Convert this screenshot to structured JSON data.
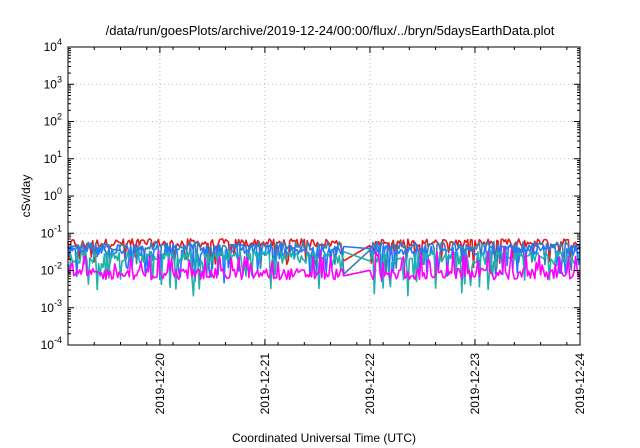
{
  "chart_data": {
    "type": "line",
    "title": "/data/run/goesPlots/archive/2019-12-24/00:00/flux/../bryn/5daysEarthData.plot",
    "xlabel": "Coordinated Universal Time (UTC)",
    "ylabel": "cSv/day",
    "yscale": "log",
    "ylim": [
      0.0001,
      10000
    ],
    "xlim": [
      "2019-12-19T03:00",
      "2019-12-24T00:00"
    ],
    "y_ticks": [
      {
        "value": 0.0001,
        "base": "10",
        "exp": "-4"
      },
      {
        "value": 0.001,
        "base": "10",
        "exp": "-3"
      },
      {
        "value": 0.01,
        "base": "10",
        "exp": "-2"
      },
      {
        "value": 0.1,
        "base": "10",
        "exp": "-1"
      },
      {
        "value": 1,
        "base": "10",
        "exp": "0"
      },
      {
        "value": 10,
        "base": "10",
        "exp": "1"
      },
      {
        "value": 100,
        "base": "10",
        "exp": "2"
      },
      {
        "value": 1000,
        "base": "10",
        "exp": "3"
      },
      {
        "value": 10000,
        "base": "10",
        "exp": "4"
      }
    ],
    "x_ticks": [
      "2019-12-20",
      "2019-12-21",
      "2019-12-22",
      "2019-12-23",
      "2019-12-24"
    ],
    "grid": true,
    "data_gap": [
      "2019-12-21T18:00",
      "2019-12-22T00:00"
    ],
    "series": [
      {
        "color": "#e41a1c",
        "base": 0.055,
        "spread": 0.22,
        "spike_down": 0.55
      },
      {
        "color": "#377eb8",
        "base": 0.045,
        "spread": 0.25,
        "spike_down": 0.7
      },
      {
        "color": "#1f78ff",
        "base": 0.035,
        "spread": 0.3,
        "spike_down": 0.8
      },
      {
        "color": "#20b2aa",
        "base": 0.022,
        "spread": 0.35,
        "spike_down": 0.9
      },
      {
        "color": "#ff00ff",
        "base": 0.008,
        "spread": 0.3,
        "spike_up": 0.6
      }
    ]
  }
}
